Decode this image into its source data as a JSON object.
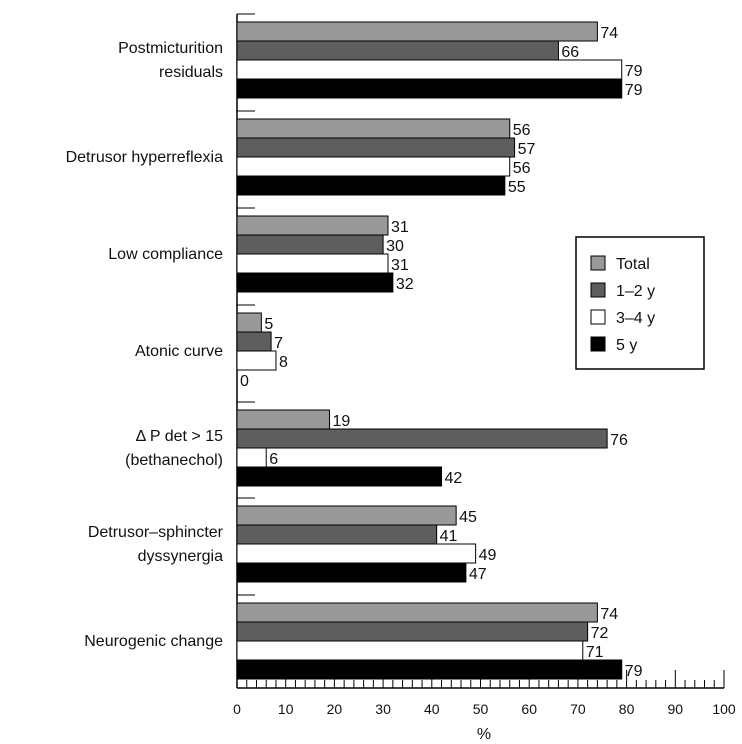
{
  "chart_data": {
    "type": "bar",
    "orientation": "horizontal",
    "categories": [
      [
        "Postmicturition",
        "residuals"
      ],
      [
        "Detrusor hyperreflexia"
      ],
      [
        "Low compliance"
      ],
      [
        "Atonic curve"
      ],
      [
        "Δ P det > 15",
        "(bethanechol)"
      ],
      [
        "Detrusor–sphincter",
        "dyssynergia"
      ],
      [
        "Neurogenic change"
      ]
    ],
    "series": [
      {
        "name": "Total",
        "color": "#999999",
        "values": [
          74,
          56,
          31,
          5,
          19,
          45,
          74
        ]
      },
      {
        "name": "1–2 y",
        "color": "#5e5e5e",
        "values": [
          66,
          57,
          30,
          7,
          76,
          41,
          72
        ]
      },
      {
        "name": "3–4 y",
        "color": "#ffffff",
        "values": [
          79,
          56,
          31,
          8,
          6,
          49,
          71
        ]
      },
      {
        "name": "5 y",
        "color": "#000000",
        "values": [
          79,
          55,
          32,
          0,
          42,
          47,
          79
        ]
      }
    ],
    "xlabel": "%",
    "xlim": [
      0,
      100
    ],
    "xticks": [
      0,
      10,
      20,
      30,
      40,
      50,
      60,
      70,
      80,
      90,
      100
    ],
    "grid": false,
    "legend_position": "right"
  }
}
